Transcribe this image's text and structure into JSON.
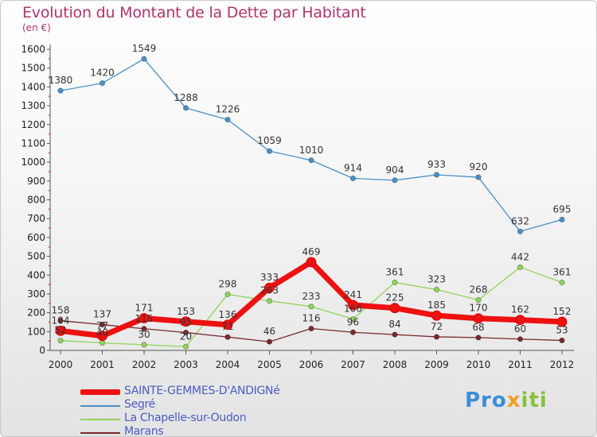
{
  "header": {
    "title": "Evolution du Montant de la Dette par Habitant",
    "subtitle": "(en €)"
  },
  "brand": {
    "part1": "Pro",
    "part2": "x",
    "part3": "iti"
  },
  "chart_data": {
    "type": "line",
    "title": "Evolution du Montant de la Dette par Habitant",
    "subtitle": "(en €)",
    "x": [
      "2000",
      "2001",
      "2002",
      "2003",
      "2004",
      "2005",
      "2006",
      "2007",
      "2008",
      "2009",
      "2010",
      "2011",
      "2012"
    ],
    "ylim": [
      0,
      1600
    ],
    "yticks": [
      0,
      100,
      200,
      300,
      400,
      500,
      600,
      700,
      800,
      900,
      1000,
      1100,
      1200,
      1300,
      1400,
      1500,
      1600
    ],
    "grid": false,
    "legend_position": "bottom-left",
    "series": [
      {
        "name": "SAINTE-GEMMES-D'ANDIGNé",
        "color": "#ee1111",
        "emphasis": "thick",
        "values": [
          104,
          77,
          171,
          153,
          136,
          333,
          469,
          241,
          225,
          185,
          170,
          162,
          152
        ],
        "labels": [
          "104",
          "77",
          "171",
          "153",
          "136",
          "333",
          "469",
          "241",
          "225",
          "185",
          "170",
          "162",
          "152"
        ]
      },
      {
        "name": "Segré",
        "color": "#4a90c8",
        "values": [
          1380,
          1420,
          1549,
          1288,
          1226,
          1059,
          1010,
          914,
          904,
          933,
          920,
          632,
          695
        ],
        "labels": [
          "1380",
          "1420",
          "1549",
          "1288",
          "1226",
          "1059",
          "1010",
          "914",
          "904",
          "933",
          "920",
          "632",
          "695"
        ]
      },
      {
        "name": "La Chapelle-sur-Oudon",
        "color": "#8fd45a",
        "values": [
          52,
          40,
          30,
          20,
          298,
          263,
          233,
          166,
          361,
          323,
          268,
          442,
          361
        ],
        "labels": [
          "52",
          "40",
          "30",
          "20",
          "298",
          "263",
          "233",
          "166",
          "361",
          "323",
          "268",
          "442",
          "361"
        ]
      },
      {
        "name": "Marans",
        "color": "#7a2a2a",
        "values": [
          158,
          137,
          115,
          95,
          71,
          46,
          116,
          96,
          84,
          72,
          68,
          60,
          53
        ],
        "labels": [
          "158",
          "137",
          "115",
          "95",
          "71",
          "46",
          "116",
          "96",
          "84",
          "72",
          "68",
          "60",
          "53"
        ]
      }
    ]
  }
}
